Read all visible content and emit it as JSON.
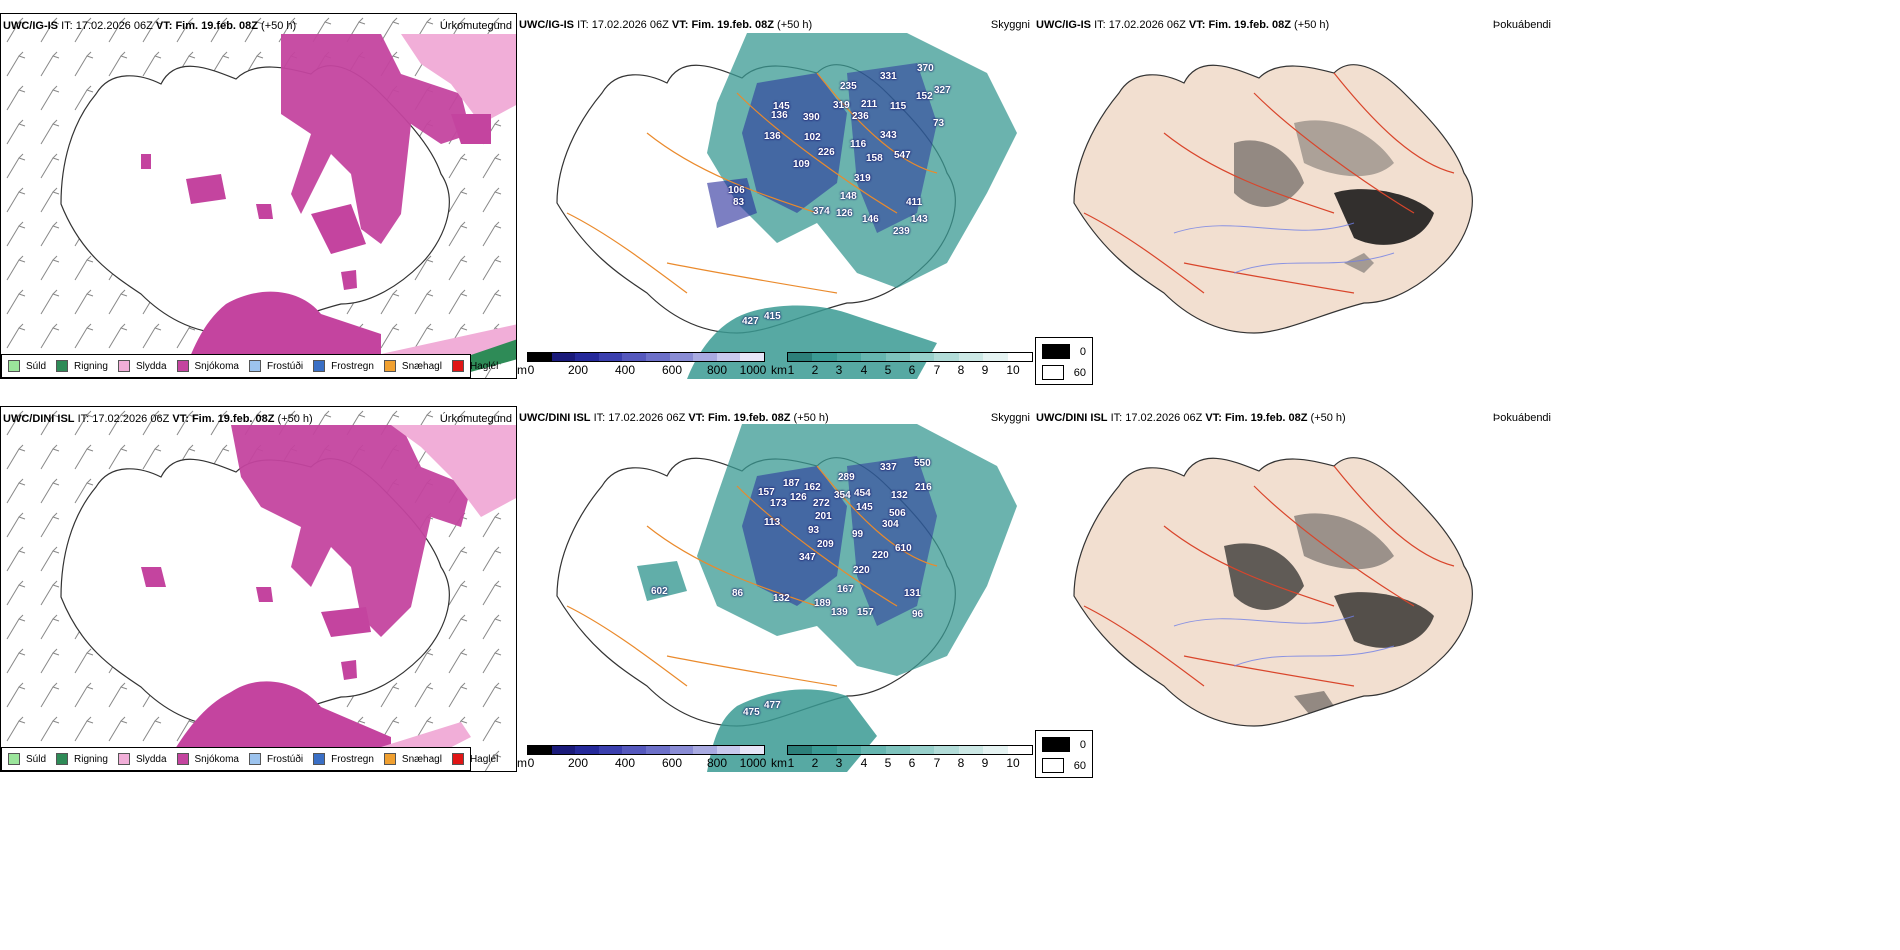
{
  "colors": {
    "pink": "#c4449f",
    "lightpink": "#f1aed8",
    "green": "#2e8b57",
    "teal": "#3a9a93",
    "navy": "#25299a",
    "orange": "#ea8a2c",
    "beige": "#f2dfd0",
    "red": "#d9452b"
  },
  "rows": [
    {
      "left": {
        "model": "UWC/IG-IS",
        "it_label": "IT:",
        "it_value": "17.02.2026 06Z",
        "vt_label": "VT:",
        "vt_value": "Fim. 19.feb. 08Z",
        "lead": "(+50 h)",
        "label": "Úrkomutegund"
      },
      "middle": {
        "model": "UWC/IG-IS",
        "it_label": "IT:",
        "it_value": "17.02.2026 06Z",
        "vt_label": "VT:",
        "vt_value": "Fim. 19.feb. 08Z",
        "lead": "(+50 h)",
        "label": "Skyggni",
        "values": [
          "331",
          "370",
          "235",
          "327",
          "319",
          "211",
          "115",
          "152",
          "145",
          "136",
          "390",
          "236",
          "136",
          "343",
          "73",
          "102",
          "116",
          "226",
          "158",
          "547",
          "109",
          "319",
          "106",
          "83",
          "148",
          "374",
          "126",
          "146",
          "411",
          "143",
          "239",
          "415",
          "427"
        ]
      },
      "right": {
        "model": "UWC/IG-IS",
        "it_label": "IT:",
        "it_value": "17.02.2026 06Z",
        "vt_label": "VT:",
        "vt_value": "Fim. 19.feb. 08Z",
        "lead": "(+50 h)",
        "label": "Þokuábendi"
      }
    },
    {
      "left": {
        "model": "UWC/DINI ISL",
        "it_label": "IT:",
        "it_value": "17.02.2026 06Z",
        "vt_label": "VT:",
        "vt_value": "Fim. 19.feb. 08Z",
        "lead": "(+50 h)",
        "label": "Úrkomutegund"
      },
      "middle": {
        "model": "UWC/DINI ISL",
        "it_label": "IT:",
        "it_value": "17.02.2026 06Z",
        "vt_label": "VT:",
        "vt_value": "Fim. 19.feb. 08Z",
        "lead": "(+50 h)",
        "label": "Skyggni",
        "values": [
          "337",
          "550",
          "289",
          "157",
          "187",
          "162",
          "354",
          "454",
          "132",
          "216",
          "173",
          "126",
          "272",
          "145",
          "506",
          "113",
          "201",
          "304",
          "99",
          "610",
          "93",
          "209",
          "347",
          "220",
          "220",
          "602",
          "86",
          "132",
          "167",
          "131",
          "189",
          "139",
          "157",
          "96",
          "475",
          "477"
        ]
      },
      "right": {
        "model": "UWC/DINI ISL",
        "it_label": "IT:",
        "it_value": "17.02.2026 06Z",
        "vt_label": "VT:",
        "vt_value": "Fim. 19.feb. 08Z",
        "lead": "(+50 h)",
        "label": "Þokuábendi"
      }
    }
  ],
  "precip_legend": [
    {
      "label": "Súld",
      "color": "#9be59b"
    },
    {
      "label": "Rigning",
      "color": "#2e8b57"
    },
    {
      "label": "Slydda",
      "color": "#f1aed8"
    },
    {
      "label": "Snjókoma",
      "color": "#c4449f"
    },
    {
      "label": "Frostúði",
      "color": "#9cc3ee"
    },
    {
      "label": "Frostregn",
      "color": "#3a6fc5"
    },
    {
      "label": "Snæhagl",
      "color": "#f0a030"
    },
    {
      "label": "Haglél",
      "color": "#e01515"
    }
  ],
  "ceiling_scale": {
    "unit": "m",
    "ticks": [
      "0",
      "200",
      "400",
      "600",
      "800",
      "1000"
    ]
  },
  "visibility_scale": {
    "unit": "km",
    "ticks": [
      "1",
      "2",
      "3",
      "4",
      "5",
      "6",
      "7",
      "8",
      "9",
      "10"
    ]
  },
  "fog_scale": {
    "ticks": [
      "0",
      "60"
    ]
  }
}
